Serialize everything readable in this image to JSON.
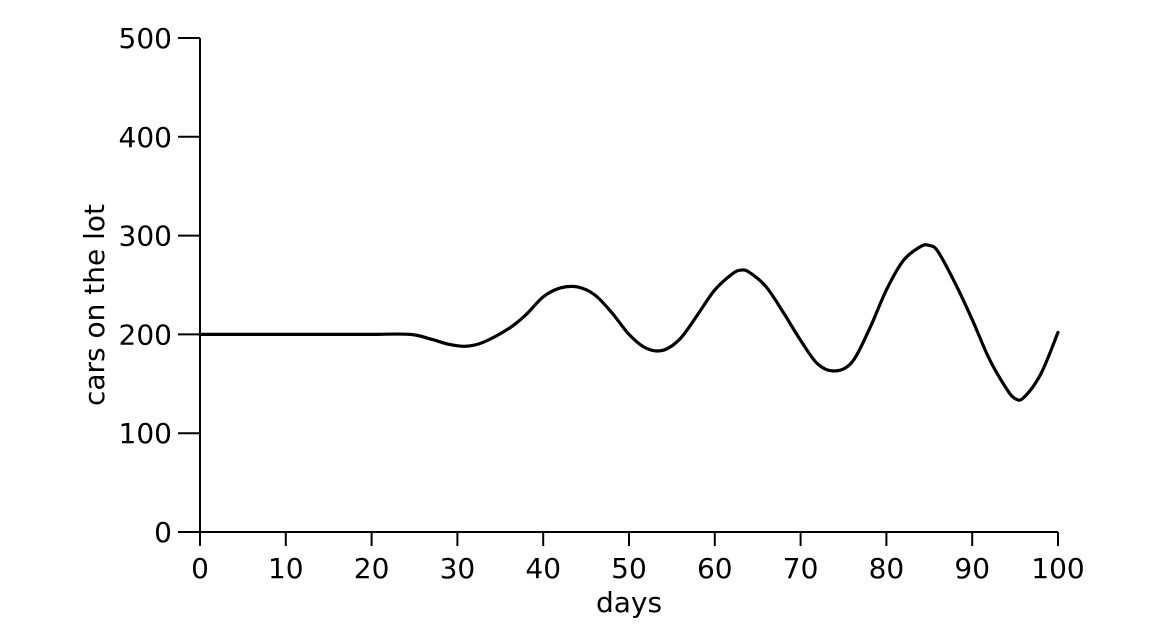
{
  "chart_data": {
    "type": "line",
    "title": "",
    "xlabel": "days",
    "ylabel": "cars on the lot",
    "xlim": [
      0,
      100
    ],
    "ylim": [
      0,
      500
    ],
    "xticks": [
      0,
      10,
      20,
      30,
      40,
      50,
      60,
      70,
      80,
      90,
      100
    ],
    "yticks": [
      0,
      100,
      200,
      300,
      400,
      500
    ],
    "grid": false,
    "legend": "none",
    "colors": {
      "line": "#000000",
      "axis": "#000000",
      "background": "#ffffff"
    },
    "series": [
      {
        "x": [
          0,
          5,
          10,
          15,
          20,
          24.5,
          27,
          29,
          31,
          33,
          36,
          38,
          40,
          42,
          44,
          46,
          48,
          50,
          52,
          54,
          56,
          58,
          60,
          62,
          63,
          64,
          66,
          68,
          70,
          72,
          74,
          76,
          78,
          80,
          82,
          84,
          85,
          86,
          88,
          90,
          92,
          94,
          95,
          96,
          98,
          100
        ],
        "y": [
          200,
          200,
          200,
          200,
          200,
          200,
          195,
          190,
          188,
          192,
          206,
          220,
          238,
          247,
          248,
          240,
          222,
          200,
          186,
          184,
          196,
          220,
          245,
          261,
          265,
          263,
          248,
          222,
          194,
          170,
          163,
          172,
          205,
          245,
          275,
          289,
          290,
          284,
          252,
          215,
          175,
          145,
          135,
          136,
          160,
          202
        ]
      }
    ]
  }
}
